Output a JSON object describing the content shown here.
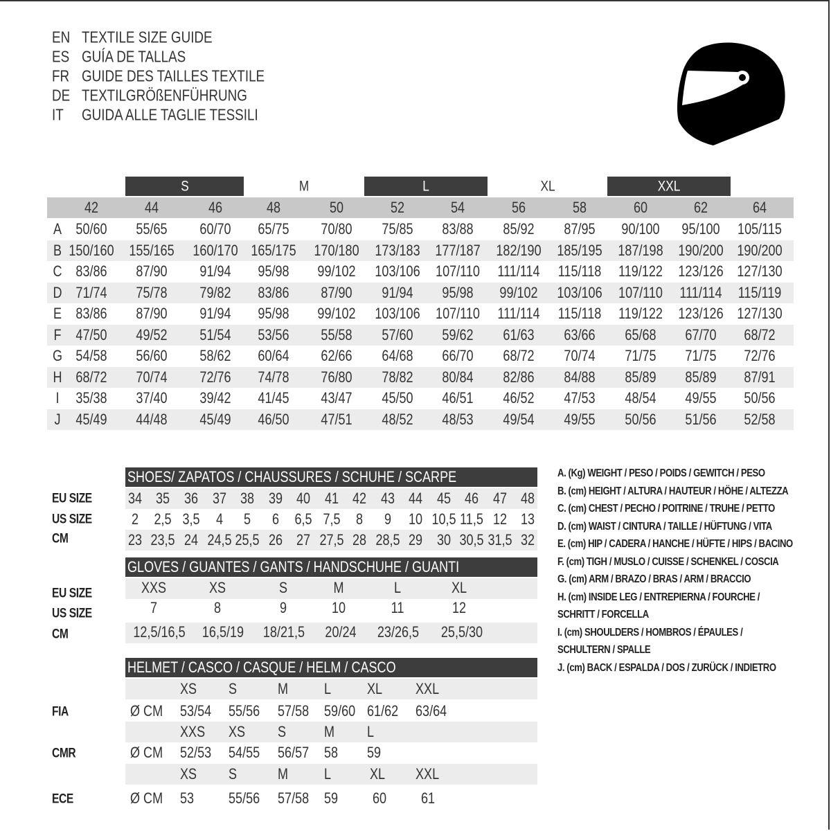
{
  "titles": [
    {
      "code": "EN",
      "text": "TEXTILE SIZE GUIDE"
    },
    {
      "code": "ES",
      "text": "GUÍA DE TALLAS"
    },
    {
      "code": "FR",
      "text": "GUIDE DES TAILLES TEXTILE"
    },
    {
      "code": "DE",
      "text": "TEXTILGRÖßENFÜHRUNG"
    },
    {
      "code": "IT",
      "text": "GUIDA ALLE TAGLIE TESSILI"
    }
  ],
  "icon": "helmet-icon",
  "textile": {
    "size_groups": [
      "S",
      "M",
      "L",
      "XL",
      "XXL"
    ],
    "sizes": [
      "42",
      "44",
      "46",
      "48",
      "50",
      "52",
      "54",
      "56",
      "58",
      "60",
      "62",
      "64"
    ],
    "rows": [
      {
        "label": "A",
        "values": [
          "50/60",
          "55/65",
          "60/70",
          "65/75",
          "70/80",
          "75/85",
          "83/88",
          "85/92",
          "87/95",
          "90/100",
          "95/100",
          "105/115"
        ]
      },
      {
        "label": "B",
        "values": [
          "150/160",
          "155/165",
          "160/170",
          "165/175",
          "170/180",
          "173/183",
          "177/187",
          "182/190",
          "185/195",
          "187/198",
          "190/200",
          "190/200"
        ]
      },
      {
        "label": "C",
        "values": [
          "83/86",
          "87/90",
          "91/94",
          "95/98",
          "99/102",
          "103/106",
          "107/110",
          "111/114",
          "115/118",
          "119/122",
          "123/126",
          "127/130"
        ]
      },
      {
        "label": "D",
        "values": [
          "71/74",
          "75/78",
          "79/82",
          "83/86",
          "87/90",
          "91/94",
          "95/98",
          "99/102",
          "103/106",
          "107/110",
          "111/114",
          "115/119"
        ]
      },
      {
        "label": "E",
        "values": [
          "83/86",
          "87/90",
          "91/94",
          "95/98",
          "99/102",
          "103/106",
          "107/110",
          "111/114",
          "115/118",
          "119/122",
          "123/126",
          "127/130"
        ]
      },
      {
        "label": "F",
        "values": [
          "47/50",
          "49/52",
          "51/54",
          "53/56",
          "55/58",
          "57/60",
          "59/62",
          "61/63",
          "63/66",
          "65/68",
          "67/70",
          "68/72"
        ]
      },
      {
        "label": "G",
        "values": [
          "54/58",
          "56/60",
          "58/62",
          "60/64",
          "62/66",
          "64/68",
          "66/70",
          "68/72",
          "70/74",
          "71/75",
          "71/75",
          "72/76"
        ]
      },
      {
        "label": "H",
        "values": [
          "68/72",
          "70/74",
          "72/76",
          "74/78",
          "76/80",
          "78/82",
          "80/84",
          "82/86",
          "84/88",
          "85/89",
          "85/89",
          "87/91"
        ]
      },
      {
        "label": "I",
        "values": [
          "35/38",
          "37/40",
          "39/42",
          "41/45",
          "43/47",
          "45/50",
          "46/51",
          "46/52",
          "47/53",
          "48/54",
          "49/55",
          "50/56"
        ]
      },
      {
        "label": "J",
        "values": [
          "45/49",
          "44/48",
          "45/49",
          "46/50",
          "47/51",
          "48/52",
          "48/53",
          "49/54",
          "49/55",
          "50/56",
          "51/56",
          "52/58"
        ]
      }
    ]
  },
  "shoes": {
    "title": "SHOES/ ZAPATOS / CHAUSSURES / SCHUHE / SCARPE",
    "rows": [
      {
        "label": "EU SIZE",
        "values": [
          "34",
          "35",
          "36",
          "37",
          "38",
          "39",
          "40",
          "41",
          "42",
          "43",
          "44",
          "45",
          "46",
          "47",
          "48"
        ]
      },
      {
        "label": "US SIZE",
        "values": [
          "2",
          "2,5",
          "3,5",
          "4",
          "5",
          "6",
          "6,5",
          "7,5",
          "8",
          "9",
          "10",
          "10,5",
          "11,5",
          "12",
          "13"
        ]
      },
      {
        "label": "CM",
        "values": [
          "23",
          "23,5",
          "24",
          "24,5",
          "25,5",
          "26",
          "27",
          "27,5",
          "28",
          "28,5",
          "29",
          "30",
          "30,5",
          "31,5",
          "32"
        ]
      }
    ]
  },
  "gloves": {
    "title": "GLOVES / GUANTES / GANTS / HANDSCHUHE / GUANTI",
    "rows": [
      {
        "label": "EU SIZE",
        "values": [
          "XXS",
          "XS",
          "S",
          "M",
          "L",
          "XL"
        ]
      },
      {
        "label": "US SIZE",
        "values": [
          "7",
          "8",
          "9",
          "10",
          "11",
          "12"
        ]
      },
      {
        "label": "CM",
        "values": [
          "12,5/16,5",
          "16,5/19",
          "18/21,5",
          "20/24",
          "23/26,5",
          "25,5/30"
        ]
      }
    ]
  },
  "helmet": {
    "title": "HELMET / CASCO / CASQUE / HELM / CASCO",
    "unit": "Ø CM",
    "standards": [
      {
        "label": "FIA",
        "sizes": [
          "XS",
          "S",
          "M",
          "L",
          "XL",
          "XXL"
        ],
        "values": [
          "53/54",
          "55/56",
          "57/58",
          "59/60",
          "61/62",
          "63/64"
        ]
      },
      {
        "label": "CMR",
        "sizes": [
          "XXS",
          "XS",
          "S",
          "M",
          "L"
        ],
        "values": [
          "52/53",
          "54/55",
          "56/57",
          "58",
          "59"
        ]
      },
      {
        "label": "ECE",
        "sizes": [
          "XS",
          "S",
          "M",
          "L",
          "XL",
          "XXL"
        ],
        "values": [
          "53",
          "55/56",
          "57/58",
          "59",
          "60",
          "61"
        ]
      }
    ]
  },
  "legend": [
    "A. (Kg) WEIGHT / PESO / POIDS / GEWITCH / PESO",
    "B. (cm) HEIGHT / ALTURA / HAUTEUR / HÖHE / ALTEZZA",
    "C. (cm) CHEST / PECHO / POITRINE / TRUHE / PETTO",
    "D. (cm) WAIST / CINTURA / TAILLE / HÜFTUNG / VITA",
    "E. (cm) HIP / CADERA / HANCHE / HÜFTE / HIPS /  BACINO",
    "F.  (cm) TIGH / MUSLO / CUISSE / SCHENKEL / COSCIA",
    "G. (cm) ARM  / BRAZO / BRAS / ARM / BRACCIO",
    "H. (cm) INSIDE LEG / ENTREPIERNA / FOURCHE /",
    "SCHRITT / FORCELLA",
    "I.  (cm) SHOULDERS / HOMBROS / ÉPAULES /",
    "SCHULTERN / SPALLE",
    "J. (cm) BACK / ESPALDA / DOS / ZURÜCK / INDIETRO"
  ],
  "colors": {
    "dark_band": "#3d3d3d",
    "header_gray": "#c8c8c8",
    "stripe": "#ececec"
  }
}
